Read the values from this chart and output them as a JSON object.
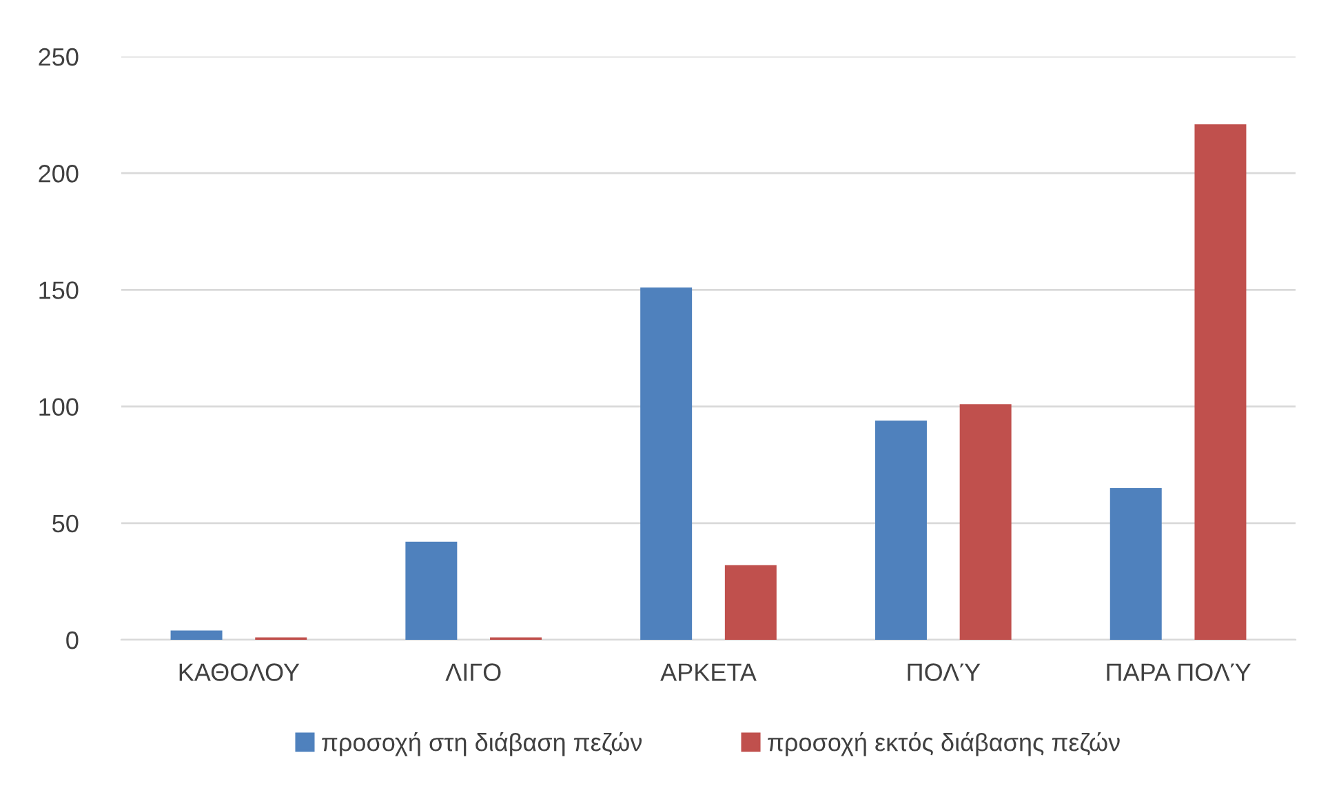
{
  "chart_data": {
    "type": "bar",
    "categories": [
      "ΚΑΘΟΛΟΥ",
      "ΛΙΓΟ",
      "ΑΡΚΕΤΑ",
      "ΠΟΛΎ",
      "ΠΑΡΑ ΠΟΛΎ"
    ],
    "series": [
      {
        "name": "προσοχή στη διάβαση πεζών",
        "color": "#4f81bd",
        "values": [
          4,
          42,
          151,
          94,
          65
        ]
      },
      {
        "name": "προσοχή εκτός διάβασης πεζών",
        "color": "#c0504d",
        "values": [
          1,
          1,
          32,
          101,
          221
        ]
      }
    ],
    "ylim": [
      0,
      250
    ],
    "yticks": [
      0,
      50,
      100,
      150,
      200,
      250
    ],
    "grid": "y",
    "legend": "bottom"
  }
}
